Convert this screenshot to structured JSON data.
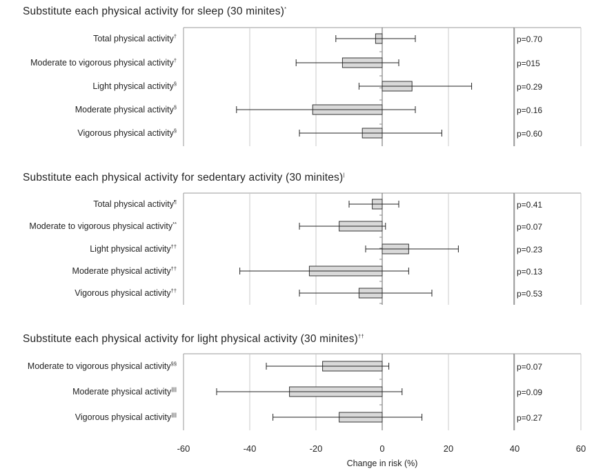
{
  "chart_data": {
    "type": "bar",
    "orientation": "horizontal",
    "xlabel": "Change in risk (%)",
    "xlim": [
      -60,
      60
    ],
    "xticks": [
      "-60",
      "-40",
      "-20",
      "0",
      "20",
      "40",
      "60"
    ],
    "grid": "vertical gridlines at -40, -20, 20, 40",
    "colors": {
      "bar_fill": "#d9d9d9",
      "bar_stroke": "#333333",
      "grid": "#c8c8c8",
      "axis": "#999999"
    },
    "panels": [
      {
        "title": "Substitute each physical activity for sleep (30 minites)",
        "title_mark": "*",
        "categories": [
          "Total physical activity",
          "Moderate to vigorous physical activity",
          "Light physical activity",
          "Moderate physical activity",
          "Vigorous physical activity"
        ],
        "marks": [
          "†",
          "†",
          "§",
          "§",
          "§"
        ],
        "values": [
          -2,
          -12,
          9,
          -21,
          -6
        ],
        "ci_lower": [
          -14,
          -26,
          -7,
          -44,
          -25
        ],
        "ci_upper": [
          10,
          5,
          27,
          10,
          18
        ],
        "p_values": [
          "p=0.70",
          "p=015",
          "p=0.29",
          "p=0.16",
          "p=0.60"
        ]
      },
      {
        "title": "Substitute each physical activity for sedentary activity (30 minites)",
        "title_mark": "|",
        "categories": [
          "Total physical activity",
          "Moderate to vigorous physical activity",
          "Light physical activity",
          "Moderate physical activity",
          "Vigorous physical activity"
        ],
        "marks": [
          "¶",
          "**",
          "††",
          "††",
          "††"
        ],
        "values": [
          -3,
          -13,
          8,
          -22,
          -7
        ],
        "ci_lower": [
          -10,
          -25,
          -5,
          -43,
          -25
        ],
        "ci_upper": [
          5,
          1,
          23,
          8,
          15
        ],
        "p_values": [
          "p=0.41",
          "p=0.07",
          "p=0.23",
          "p=0.13",
          "p=0.53"
        ]
      },
      {
        "title": "Substitute each physical activity for light physical activity (30 minites)",
        "title_mark": "††",
        "categories": [
          "Moderate to vigorous physical activity",
          "Moderate physical activity",
          "Vigorous physical activity"
        ],
        "marks": [
          "§§",
          "||||",
          "||||"
        ],
        "values": [
          -18,
          -28,
          -13
        ],
        "ci_lower": [
          -35,
          -50,
          -33
        ],
        "ci_upper": [
          2,
          6,
          12
        ],
        "p_values": [
          "p=0.07",
          "p=0.09",
          "p=0.27"
        ]
      }
    ]
  }
}
